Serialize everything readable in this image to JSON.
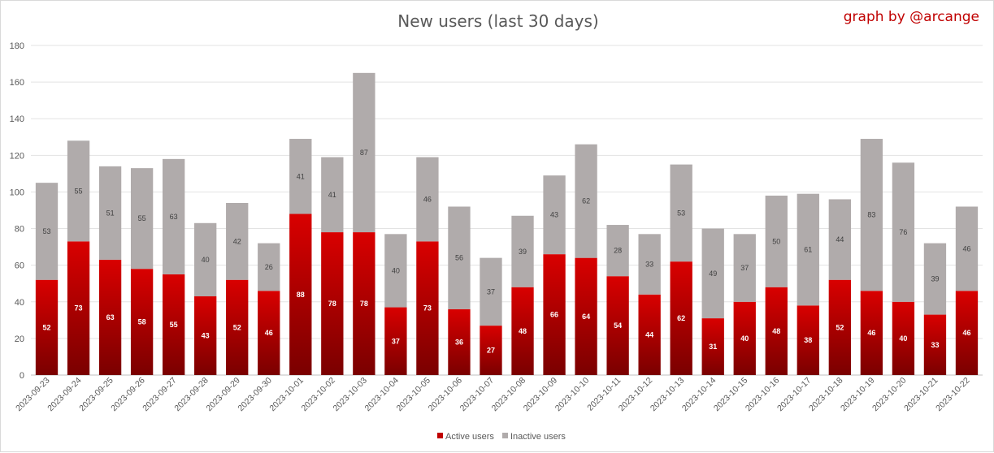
{
  "chart_data": {
    "type": "bar",
    "stacked": true,
    "title": "New users (last 30 days)",
    "credit": "graph by @arcange",
    "xlabel": "",
    "ylabel": "",
    "ylim": [
      0,
      180
    ],
    "yticks": [
      0,
      20,
      40,
      60,
      80,
      100,
      120,
      140,
      160,
      180
    ],
    "grid": "horizontal",
    "legend_position": "bottom",
    "categories": [
      "2023-09-23",
      "2023-09-24",
      "2023-09-25",
      "2023-09-26",
      "2023-09-27",
      "2023-09-28",
      "2023-09-29",
      "2023-09-30",
      "2023-10-01",
      "2023-10-02",
      "2023-10-03",
      "2023-10-04",
      "2023-10-05",
      "2023-10-06",
      "2023-10-07",
      "2023-10-08",
      "2023-10-09",
      "2023-10-10",
      "2023-10-11",
      "2023-10-12",
      "2023-10-13",
      "2023-10-14",
      "2023-10-15",
      "2023-10-16",
      "2023-10-17",
      "2023-10-18",
      "2023-10-19",
      "2023-10-20",
      "2023-10-21",
      "2023-10-22"
    ],
    "series": [
      {
        "name": "Active users",
        "color": "#c00000",
        "values": [
          52,
          73,
          63,
          58,
          55,
          43,
          52,
          46,
          88,
          78,
          78,
          37,
          73,
          36,
          27,
          48,
          66,
          64,
          54,
          44,
          62,
          31,
          40,
          48,
          38,
          52,
          46,
          40,
          33,
          46
        ]
      },
      {
        "name": "Inactive users",
        "color": "#b0abab",
        "values": [
          53,
          55,
          51,
          55,
          63,
          40,
          42,
          26,
          41,
          41,
          87,
          40,
          46,
          56,
          37,
          39,
          43,
          62,
          28,
          33,
          53,
          49,
          37,
          50,
          61,
          44,
          83,
          76,
          39,
          46
        ]
      }
    ]
  }
}
